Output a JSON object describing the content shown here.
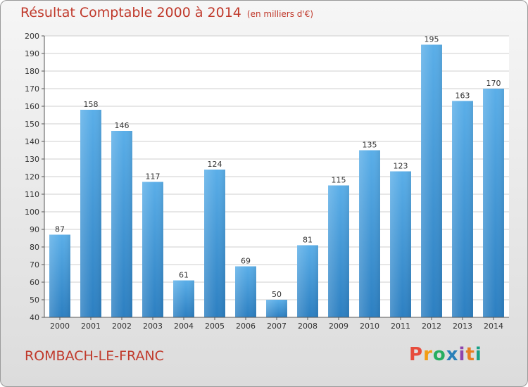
{
  "header": {
    "title": "Résultat Comptable 2000 à 2014",
    "subtitle": "(en milliers d'€)"
  },
  "footer": {
    "town": "ROMBACH-LE-FRANC",
    "logo": "Proxiti"
  },
  "colors": {
    "title": "#c0392b",
    "bar_top": "#5aaee8",
    "bar_bottom": "#2c7fc1",
    "logo": [
      "#e74c3c",
      "#f39c12",
      "#27ae60",
      "#2980b9",
      "#8e44ad",
      "#e67e22",
      "#16a085"
    ]
  },
  "chart_data": {
    "type": "bar",
    "title": "Résultat Comptable 2000 à 2014",
    "subtitle": "(en milliers d'€)",
    "xlabel": "",
    "ylabel": "",
    "categories": [
      "2000",
      "2001",
      "2002",
      "2003",
      "2004",
      "2005",
      "2006",
      "2007",
      "2008",
      "2009",
      "2010",
      "2011",
      "2012",
      "2013",
      "2014"
    ],
    "values": [
      87,
      158,
      146,
      117,
      61,
      124,
      69,
      50,
      81,
      115,
      135,
      123,
      195,
      163,
      170
    ],
    "ylim": [
      40,
      200
    ],
    "yticks": [
      40,
      50,
      60,
      70,
      80,
      90,
      100,
      110,
      120,
      130,
      140,
      150,
      160,
      170,
      180,
      190,
      200
    ],
    "grid": true
  }
}
